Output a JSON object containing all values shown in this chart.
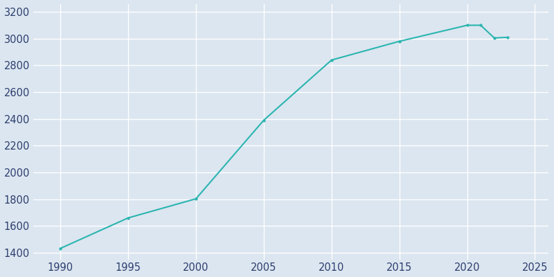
{
  "years": [
    1990,
    1995,
    2000,
    2005,
    2010,
    2015,
    2020,
    2021,
    2022,
    2023
  ],
  "population": [
    1432,
    1660,
    1803,
    2390,
    2840,
    2980,
    3100,
    3100,
    3005,
    3010
  ],
  "line_color": "#2ab5b0",
  "marker": "o",
  "marker_size": 2.5,
  "line_width": 1.5,
  "background_color": "#dce6f0",
  "plot_bg_color": "#dce6f0",
  "grid_color": "#ffffff",
  "xlim": [
    1988,
    2026
  ],
  "ylim": [
    1350,
    3260
  ],
  "xticks": [
    1990,
    1995,
    2000,
    2005,
    2010,
    2015,
    2020,
    2025
  ],
  "yticks": [
    1400,
    1600,
    1800,
    2000,
    2200,
    2400,
    2600,
    2800,
    3000,
    3200
  ],
  "tick_color": "#2d3e6e",
  "tick_fontsize": 10.5
}
